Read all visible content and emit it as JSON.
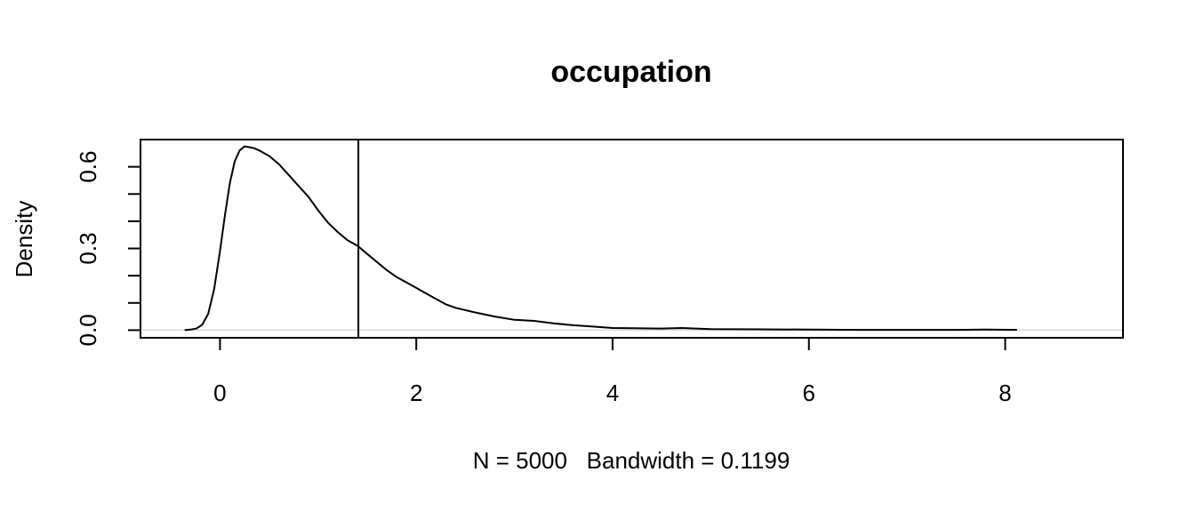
{
  "chart_data": {
    "type": "line",
    "title": "occupation",
    "xlabel": "N = 5000   Bandwidth = 0.1199",
    "ylabel": "Density",
    "xlim": [
      -0.81,
      9.2
    ],
    "ylim": [
      -0.028,
      0.7
    ],
    "x_ticks": [
      0,
      2,
      4,
      6,
      8
    ],
    "x_tick_labels": [
      "0",
      "2",
      "4",
      "6",
      "8"
    ],
    "y_ticks": [
      0.0,
      0.1,
      0.2,
      0.3,
      0.4,
      0.5,
      0.6
    ],
    "y_tick_labels": [
      "0.0",
      "",
      "",
      "0.3",
      "",
      "",
      "0.6"
    ],
    "reference_line_x": 1.41,
    "baseline_y": 0,
    "grid": false,
    "legend": "none",
    "series": [
      {
        "x": [
          -0.36,
          -0.3,
          -0.24,
          -0.18,
          -0.12,
          -0.06,
          0.0,
          0.05,
          0.1,
          0.15,
          0.2,
          0.25,
          0.3,
          0.35,
          0.4,
          0.5,
          0.6,
          0.7,
          0.8,
          0.9,
          1.0,
          1.1,
          1.2,
          1.3,
          1.4,
          1.5,
          1.6,
          1.7,
          1.8,
          1.9,
          2.0,
          2.1,
          2.2,
          2.3,
          2.4,
          2.6,
          2.8,
          3.0,
          3.2,
          3.4,
          3.6,
          3.8,
          4.0,
          4.2,
          4.5,
          4.7,
          5.0,
          5.5,
          6.0,
          6.5,
          7.0,
          7.5,
          7.8,
          8.12
        ],
        "y": [
          0.0,
          0.002,
          0.006,
          0.02,
          0.06,
          0.15,
          0.29,
          0.42,
          0.54,
          0.62,
          0.66,
          0.675,
          0.672,
          0.668,
          0.66,
          0.64,
          0.61,
          0.57,
          0.53,
          0.49,
          0.44,
          0.395,
          0.36,
          0.33,
          0.31,
          0.28,
          0.25,
          0.22,
          0.195,
          0.175,
          0.155,
          0.135,
          0.115,
          0.095,
          0.082,
          0.065,
          0.05,
          0.038,
          0.034,
          0.025,
          0.018,
          0.013,
          0.008,
          0.007,
          0.006,
          0.008,
          0.004,
          0.003,
          0.002,
          0.001,
          0.001,
          0.001,
          0.002,
          0.001
        ]
      }
    ]
  }
}
